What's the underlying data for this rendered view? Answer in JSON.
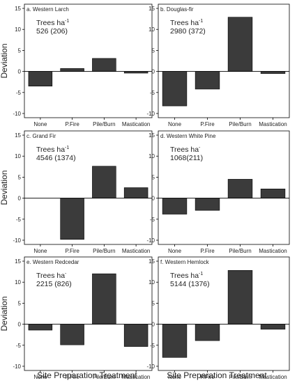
{
  "colors": {
    "bar_fill": "#3b3b3b",
    "bar_stroke": "#000000",
    "axis": "#000000",
    "zero_line": "#000000"
  },
  "figure": {
    "x_axis_title": "Site Preparation Treatment",
    "y_axis_title": "Deviation"
  },
  "chart_data": [
    {
      "type": "bar",
      "title": "a. Western Larch",
      "annotation": {
        "label": "Trees ha",
        "sup": "-1",
        "value": "526 (206)"
      },
      "categories": [
        "None",
        "P.Fire",
        "Pile/Burn",
        "Mastication"
      ],
      "values": [
        -3.5,
        0.7,
        3.1,
        -0.4
      ],
      "ylim": [
        -11,
        16
      ],
      "yticks": [
        -10,
        -5,
        0,
        5,
        10,
        15
      ],
      "xlabel": "",
      "ylabel": "Deviation"
    },
    {
      "type": "bar",
      "title": "b. Douglas-fir",
      "annotation": {
        "label": "Trees ha",
        "sup": "-1",
        "value": "2980 (372)"
      },
      "categories": [
        "None",
        "P.Fire",
        "Pile/Burn",
        "Mastication"
      ],
      "values": [
        -8.2,
        -4.2,
        12.9,
        -0.5
      ],
      "ylim": [
        -11,
        16
      ],
      "yticks": [
        -10,
        -5,
        0,
        5,
        10,
        15
      ],
      "xlabel": "",
      "ylabel": ""
    },
    {
      "type": "bar",
      "title": "c. Grand Fir",
      "annotation": {
        "label": "Trees ha",
        "sup": "-1",
        "value": "4546 (1374)"
      },
      "categories": [
        "None",
        "P.Fire",
        "Pile/Burn",
        "Mastication"
      ],
      "values": [
        0,
        -9.8,
        7.6,
        2.5
      ],
      "ylim": [
        -11,
        16
      ],
      "yticks": [
        -10,
        -5,
        0,
        5,
        10,
        15
      ],
      "xlabel": "",
      "ylabel": "Deviation"
    },
    {
      "type": "bar",
      "title": "d. Western White Pine",
      "annotation": {
        "label": "Trees ha",
        "sup": "-",
        "value": "1068(211)"
      },
      "categories": [
        "None",
        "P.Fire",
        "Pile/Burn",
        "Mastication"
      ],
      "values": [
        -3.8,
        -2.9,
        4.5,
        2.2
      ],
      "ylim": [
        -11,
        16
      ],
      "yticks": [
        -10,
        -5,
        0,
        5,
        10,
        15
      ],
      "xlabel": "",
      "ylabel": ""
    },
    {
      "type": "bar",
      "title": "e. Western Redcedar",
      "annotation": {
        "label": "Trees ha",
        "sup": "-",
        "value": "2215 (826)"
      },
      "categories": [
        "None",
        "P.Fire",
        "Pile/Burn",
        "Mastication"
      ],
      "values": [
        -1.4,
        -4.9,
        12.0,
        -5.3
      ],
      "ylim": [
        -11,
        16
      ],
      "yticks": [
        -10,
        -5,
        0,
        5,
        10,
        15
      ],
      "xlabel": "Site Preparation Treatment",
      "ylabel": "Deviation"
    },
    {
      "type": "bar",
      "title": "f. Western Hemlock",
      "annotation": {
        "label": "Trees ha",
        "sup": "-1",
        "value": "5144 (1376)"
      },
      "categories": [
        "None",
        "P.Fire",
        "Pile/Burn",
        "Mastication"
      ],
      "values": [
        -7.9,
        -3.9,
        12.8,
        -1.2
      ],
      "ylim": [
        -11,
        16
      ],
      "yticks": [
        -10,
        -5,
        0,
        5,
        10,
        15
      ],
      "xlabel": "Site Preparation Treatment",
      "ylabel": ""
    }
  ]
}
